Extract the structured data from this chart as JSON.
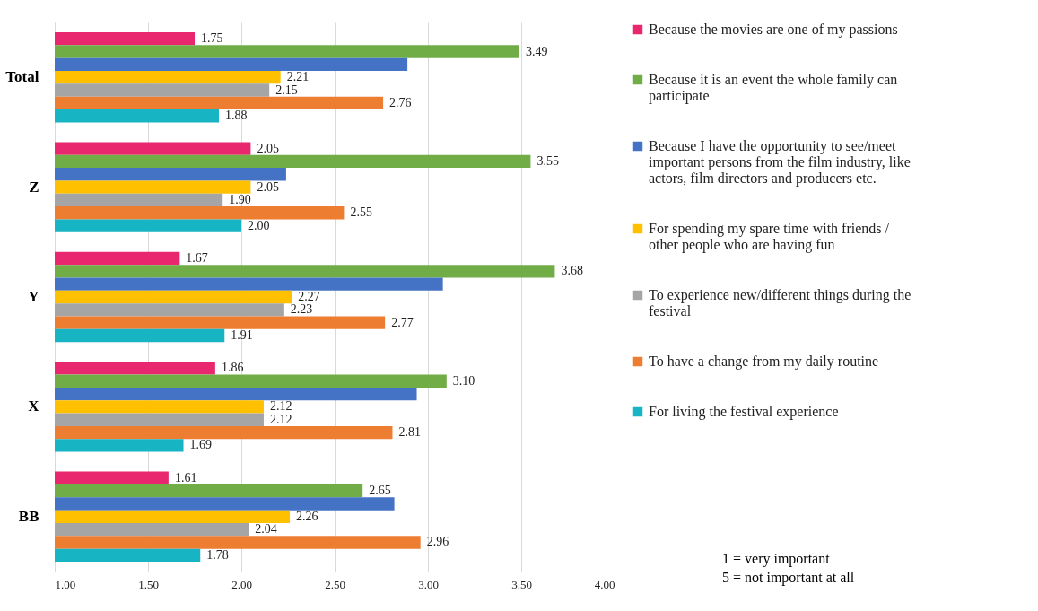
{
  "chart_data": {
    "type": "bar",
    "orientation": "horizontal",
    "categories": [
      "Total",
      "Z",
      "Y",
      "X",
      "BB"
    ],
    "series": [
      {
        "name": "Because the movies are one of my passions",
        "color": "#e8276f",
        "values": [
          1.75,
          2.05,
          1.67,
          1.86,
          1.61
        ],
        "value_labels": [
          "1.75",
          "2.05",
          "1.67",
          "1.86",
          "1.61"
        ]
      },
      {
        "name": "Because it is an event the whole family can participate",
        "color": "#70ad47",
        "values": [
          3.49,
          3.55,
          3.68,
          3.1,
          2.65
        ],
        "value_labels": [
          "3.49",
          "3.55",
          "3.68",
          "3.10",
          "2.65"
        ]
      },
      {
        "name": "Because I have the opportunity to see/meet important persons from the film industry, like actors, film directors and producers etc.",
        "color": "#4472c4",
        "values": [
          2.89,
          2.24,
          3.08,
          2.94,
          2.82
        ]
      },
      {
        "name": "For spending my spare time with friends / other people who are having fun",
        "color": "#ffc000",
        "values": [
          2.21,
          2.05,
          2.27,
          2.12,
          2.26
        ],
        "value_labels": [
          "2.21",
          "2.05",
          "2.27",
          "2.12",
          "2.26"
        ]
      },
      {
        "name": "To experience new/different things during the festival",
        "color": "#a5a5a5",
        "values": [
          2.15,
          1.9,
          2.23,
          2.12,
          2.04
        ],
        "value_labels": [
          "2.15",
          "1.90",
          "2.23",
          "2.12",
          "2.04"
        ]
      },
      {
        "name": "To have a change from my daily routine",
        "color": "#ed7d31",
        "values": [
          2.76,
          2.55,
          2.77,
          2.81,
          2.96
        ],
        "value_labels": [
          "2.76",
          "2.55",
          "2.77",
          "2.81",
          "2.96"
        ]
      },
      {
        "name": "For living the festival experience",
        "color": "#17b4c3",
        "values": [
          1.88,
          2.0,
          1.91,
          1.69,
          1.78
        ],
        "value_labels": [
          "1.88",
          "2.00",
          "1.91",
          "1.69",
          "1.78"
        ]
      }
    ],
    "xlim": [
      1,
      4
    ],
    "xticks": [
      {
        "value": 1,
        "label": "1.00"
      },
      {
        "value": 1.5,
        "label": "1.50"
      },
      {
        "value": 2,
        "label": "2.00"
      },
      {
        "value": 2.5,
        "label": "2.50"
      },
      {
        "value": 3,
        "label": "3.00"
      },
      {
        "value": 3.5,
        "label": "3.50"
      },
      {
        "value": 4,
        "label": "4.00"
      }
    ],
    "grid": "x",
    "legend": "right",
    "annotations": [
      "1 = very important",
      "5 = not important at all"
    ]
  }
}
